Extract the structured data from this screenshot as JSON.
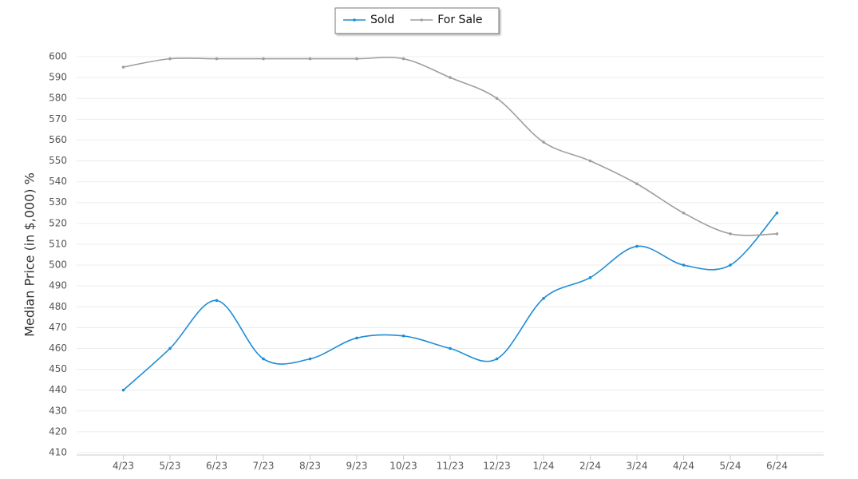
{
  "chart_data": {
    "type": "line",
    "y_label": "Median Price (in $,000) %",
    "categories": [
      "4/23",
      "5/23",
      "6/23",
      "7/23",
      "8/23",
      "9/23",
      "10/23",
      "11/23",
      "12/23",
      "1/24",
      "2/24",
      "3/24",
      "4/24",
      "5/24",
      "6/24"
    ],
    "series": [
      {
        "name": "Sold",
        "color": "#1f8dd6",
        "values": [
          440,
          460,
          483,
          455,
          455,
          465,
          466,
          460,
          455,
          484,
          494,
          509,
          500,
          500,
          525
        ]
      },
      {
        "name": "For Sale",
        "color": "#9e9e9e",
        "values": [
          595,
          599,
          599,
          599,
          599,
          599,
          599,
          590,
          580,
          559,
          550,
          539,
          525,
          515,
          515
        ]
      }
    ],
    "ylim": [
      410,
      600
    ],
    "yticks": [
      410,
      420,
      430,
      440,
      450,
      460,
      470,
      480,
      490,
      500,
      510,
      520,
      530,
      540,
      550,
      560,
      570,
      580,
      590,
      600
    ],
    "grid": true,
    "smooth": true,
    "legend": "top"
  }
}
